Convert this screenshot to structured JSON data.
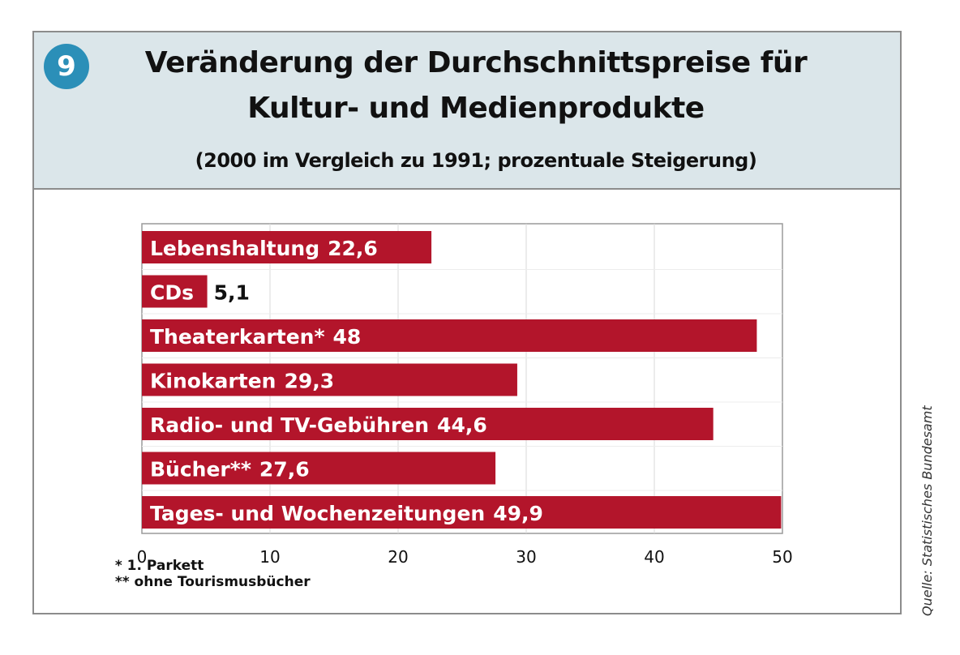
{
  "badge": "9",
  "header": {
    "title_line1": "Veränderung der Durchschnittspreise für",
    "title_line2": "Kultur- und Medienprodukte",
    "subtitle": "(2000 im Vergleich zu 1991; prozentuale Steigerung)"
  },
  "footnotes": [
    "* 1. Parkett",
    "** ohne Tourismusbücher"
  ],
  "source": "Quelle: Statistisches Bundesamt",
  "colors": {
    "bar": "#b3152b",
    "header_bg": "#dbe6ea",
    "badge": "#2b8fb8",
    "grid": "#d9d9d9"
  },
  "chart_data": {
    "type": "bar",
    "orientation": "horizontal",
    "title": "Veränderung der Durchschnittspreise für Kultur- und Medienprodukte",
    "subtitle": "(2000 im Vergleich zu 1991; prozentuale Steigerung)",
    "categories": [
      "Lebenshaltung",
      "CDs",
      "Theaterkarten*",
      "Kinokarten",
      "Radio- und TV-Gebühren",
      "Bücher**",
      "Tages- und Wochenzeitungen"
    ],
    "values": [
      22.6,
      5.1,
      48,
      29.3,
      44.6,
      27.6,
      49.9
    ],
    "value_labels": [
      "22,6",
      "5,1",
      "48",
      "29,3",
      "44,6",
      "27,6",
      "49,9"
    ],
    "xlim": [
      0,
      50
    ],
    "xticks": [
      0,
      10,
      20,
      30,
      40,
      50
    ],
    "xlabel": "",
    "ylabel": "",
    "grid": true,
    "legend": "none"
  }
}
